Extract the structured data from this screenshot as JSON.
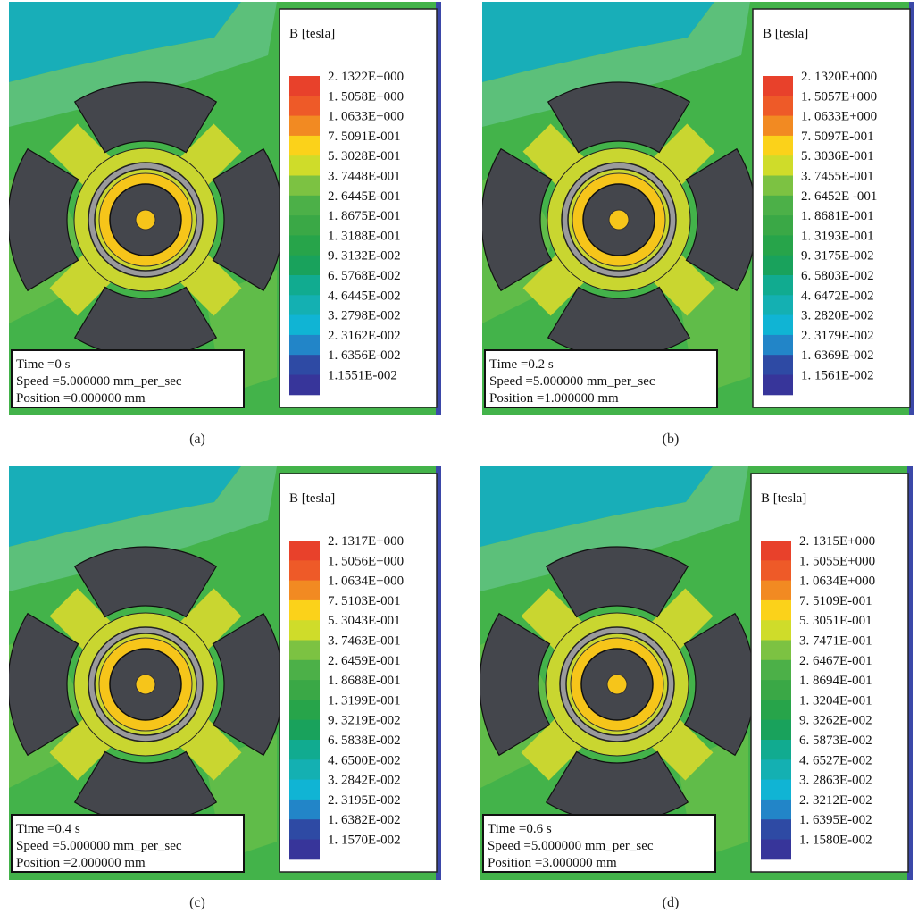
{
  "panels": [
    {
      "legend_title": "B [tesla]",
      "legend_labels": [
        "2. 1322E+000",
        "1. 5058E+000",
        "1. 0633E+000",
        "7. 5091E-001",
        "5. 3028E-001",
        "3. 7448E-001",
        "2. 6445E-001",
        "1. 8675E-001",
        "1. 3188E-001",
        "9. 3132E-002",
        "6. 5768E-002",
        "4. 6445E-002",
        "3. 2798E-002",
        "2. 3162E-002",
        "1. 6356E-002",
        "1.1551E-002"
      ],
      "info": [
        "Time =0 s",
        "Speed =5.000000 mm_per_sec",
        "Position =0.000000 mm"
      ],
      "caption": "(a)"
    },
    {
      "legend_title": "B [tesla]",
      "legend_labels": [
        "2. 1320E+000",
        "1. 5057E+000",
        "1. 0633E+000",
        "7. 5097E-001",
        "5. 3036E-001",
        "3. 7455E-001",
        "2. 6452E -001",
        "1. 8681E-001",
        "1. 3193E-001",
        "9. 3175E-002",
        "6. 5803E-002",
        "4. 6472E-002",
        "3. 2820E-002",
        "2. 3179E-002",
        "1. 6369E-002",
        "1. 1561E-002"
      ],
      "info": [
        "Time =0.2 s",
        "Speed =5.000000 mm_per_sec",
        "Position =1.000000 mm"
      ],
      "caption": "(b)"
    },
    {
      "legend_title": "B [tesla]",
      "legend_labels": [
        "2. 1317E+000",
        "1. 5056E+000",
        "1. 0634E+000",
        "7. 5103E-001",
        "5. 3043E-001",
        "3. 7463E-001",
        "2. 6459E-001",
        "1. 8688E-001",
        "1. 3199E-001",
        "9. 3219E-002",
        "6. 5838E-002",
        "4. 6500E-002",
        "3. 2842E-002",
        "2. 3195E-002",
        "1. 6382E-002",
        "1. 1570E-002"
      ],
      "info": [
        "Time =0.4 s",
        "Speed =5.000000 mm_per_sec",
        "Position =2.000000 mm"
      ],
      "caption": "(c)"
    },
    {
      "legend_title": "B [tesla]",
      "legend_labels": [
        "2. 1315E+000",
        "1. 5055E+000",
        "1. 0634E+000",
        "7. 5109E-001",
        "5. 3051E-001",
        "3. 7471E-001",
        "2. 6467E-001",
        "1. 8694E-001",
        "1. 3204E-001",
        "9. 3262E-002",
        "6. 5873E-002",
        "4. 6527E-002",
        "3. 2863E-002",
        "2. 3212E-002",
        "1. 6395E-002",
        "1. 1580E-002"
      ],
      "info": [
        "Time =0.6 s",
        "Speed =5.000000 mm_per_sec",
        "Position =3.000000 mm"
      ],
      "caption": "(d)"
    }
  ]
}
